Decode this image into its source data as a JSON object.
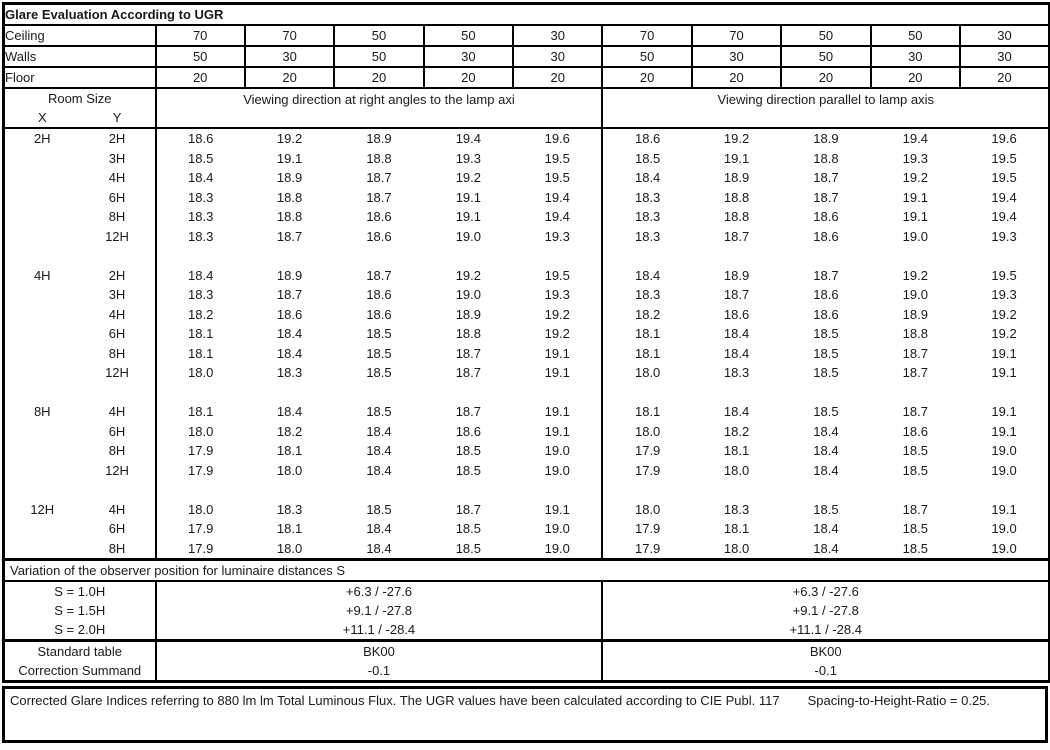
{
  "title": "Glare Evaluation According to UGR",
  "surfaces": [
    {
      "label": "Ceiling",
      "values": [
        "70",
        "70",
        "50",
        "50",
        "30",
        "70",
        "70",
        "50",
        "50",
        "30"
      ]
    },
    {
      "label": "Walls",
      "values": [
        "50",
        "30",
        "50",
        "30",
        "30",
        "50",
        "30",
        "50",
        "30",
        "30"
      ]
    },
    {
      "label": "Floor",
      "values": [
        "20",
        "20",
        "20",
        "20",
        "20",
        "20",
        "20",
        "20",
        "20",
        "20"
      ]
    }
  ],
  "matrix_header": {
    "room_size_label": "Room Size",
    "x_label": "X",
    "y_label": "Y",
    "left_viewing_label": "Viewing direction at right angles to the lamp axi",
    "right_viewing_label": "Viewing direction parallel to lamp axis"
  },
  "ugr_groups": [
    {
      "x": "2H",
      "rows": [
        {
          "y": "2H",
          "values": [
            "18.6",
            "19.2",
            "18.9",
            "19.4",
            "19.6",
            "18.6",
            "19.2",
            "18.9",
            "19.4",
            "19.6"
          ]
        },
        {
          "y": "3H",
          "values": [
            "18.5",
            "19.1",
            "18.8",
            "19.3",
            "19.5",
            "18.5",
            "19.1",
            "18.8",
            "19.3",
            "19.5"
          ]
        },
        {
          "y": "4H",
          "values": [
            "18.4",
            "18.9",
            "18.7",
            "19.2",
            "19.5",
            "18.4",
            "18.9",
            "18.7",
            "19.2",
            "19.5"
          ]
        },
        {
          "y": "6H",
          "values": [
            "18.3",
            "18.8",
            "18.7",
            "19.1",
            "19.4",
            "18.3",
            "18.8",
            "18.7",
            "19.1",
            "19.4"
          ]
        },
        {
          "y": "8H",
          "values": [
            "18.3",
            "18.8",
            "18.6",
            "19.1",
            "19.4",
            "18.3",
            "18.8",
            "18.6",
            "19.1",
            "19.4"
          ]
        },
        {
          "y": "12H",
          "values": [
            "18.3",
            "18.7",
            "18.6",
            "19.0",
            "19.3",
            "18.3",
            "18.7",
            "18.6",
            "19.0",
            "19.3"
          ]
        }
      ]
    },
    {
      "x": "4H",
      "rows": [
        {
          "y": "2H",
          "values": [
            "18.4",
            "18.9",
            "18.7",
            "19.2",
            "19.5",
            "18.4",
            "18.9",
            "18.7",
            "19.2",
            "19.5"
          ]
        },
        {
          "y": "3H",
          "values": [
            "18.3",
            "18.7",
            "18.6",
            "19.0",
            "19.3",
            "18.3",
            "18.7",
            "18.6",
            "19.0",
            "19.3"
          ]
        },
        {
          "y": "4H",
          "values": [
            "18.2",
            "18.6",
            "18.6",
            "18.9",
            "19.2",
            "18.2",
            "18.6",
            "18.6",
            "18.9",
            "19.2"
          ]
        },
        {
          "y": "6H",
          "values": [
            "18.1",
            "18.4",
            "18.5",
            "18.8",
            "19.2",
            "18.1",
            "18.4",
            "18.5",
            "18.8",
            "19.2"
          ]
        },
        {
          "y": "8H",
          "values": [
            "18.1",
            "18.4",
            "18.5",
            "18.7",
            "19.1",
            "18.1",
            "18.4",
            "18.5",
            "18.7",
            "19.1"
          ]
        },
        {
          "y": "12H",
          "values": [
            "18.0",
            "18.3",
            "18.5",
            "18.7",
            "19.1",
            "18.0",
            "18.3",
            "18.5",
            "18.7",
            "19.1"
          ]
        }
      ]
    },
    {
      "x": "8H",
      "rows": [
        {
          "y": "4H",
          "values": [
            "18.1",
            "18.4",
            "18.5",
            "18.7",
            "19.1",
            "18.1",
            "18.4",
            "18.5",
            "18.7",
            "19.1"
          ]
        },
        {
          "y": "6H",
          "values": [
            "18.0",
            "18.2",
            "18.4",
            "18.6",
            "19.1",
            "18.0",
            "18.2",
            "18.4",
            "18.6",
            "19.1"
          ]
        },
        {
          "y": "8H",
          "values": [
            "17.9",
            "18.1",
            "18.4",
            "18.5",
            "19.0",
            "17.9",
            "18.1",
            "18.4",
            "18.5",
            "19.0"
          ]
        },
        {
          "y": "12H",
          "values": [
            "17.9",
            "18.0",
            "18.4",
            "18.5",
            "19.0",
            "17.9",
            "18.0",
            "18.4",
            "18.5",
            "19.0"
          ]
        }
      ]
    },
    {
      "x": "12H",
      "rows": [
        {
          "y": "4H",
          "values": [
            "18.0",
            "18.3",
            "18.5",
            "18.7",
            "19.1",
            "18.0",
            "18.3",
            "18.5",
            "18.7",
            "19.1"
          ]
        },
        {
          "y": "6H",
          "values": [
            "17.9",
            "18.1",
            "18.4",
            "18.5",
            "19.0",
            "17.9",
            "18.1",
            "18.4",
            "18.5",
            "19.0"
          ]
        },
        {
          "y": "8H",
          "values": [
            "17.9",
            "18.0",
            "18.4",
            "18.5",
            "19.0",
            "17.9",
            "18.0",
            "18.4",
            "18.5",
            "19.0"
          ]
        }
      ]
    }
  ],
  "variation_section": {
    "heading": "Variation of the observer position for luminaire distances S",
    "rows": [
      {
        "label": "S = 1.0H",
        "left": "+6.3 / -27.6",
        "right": "+6.3 / -27.6"
      },
      {
        "label": "S = 1.5H",
        "left": "+9.1 / -27.8",
        "right": "+9.1 / -27.8"
      },
      {
        "label": "S = 2.0H",
        "left": "+11.1 / -28.4",
        "right": "+11.1 / -28.4"
      }
    ]
  },
  "summary_section": {
    "rows": [
      {
        "label": "Standard table",
        "left": "BK00",
        "right": "BK00"
      },
      {
        "label": "Correction Summand",
        "left": "-0.1",
        "right": "-0.1"
      }
    ]
  },
  "footer": {
    "note": "Corrected Glare Indices referring to 880 lm lm Total Luminous Flux. The UGR values have been calculated according to CIE Publ. 117",
    "ratio_note": "Spacing-to-Height-Ratio = 0.25."
  },
  "colors": {
    "border": "#000000",
    "text": "#1a1a1a",
    "background": "#ffffff"
  }
}
